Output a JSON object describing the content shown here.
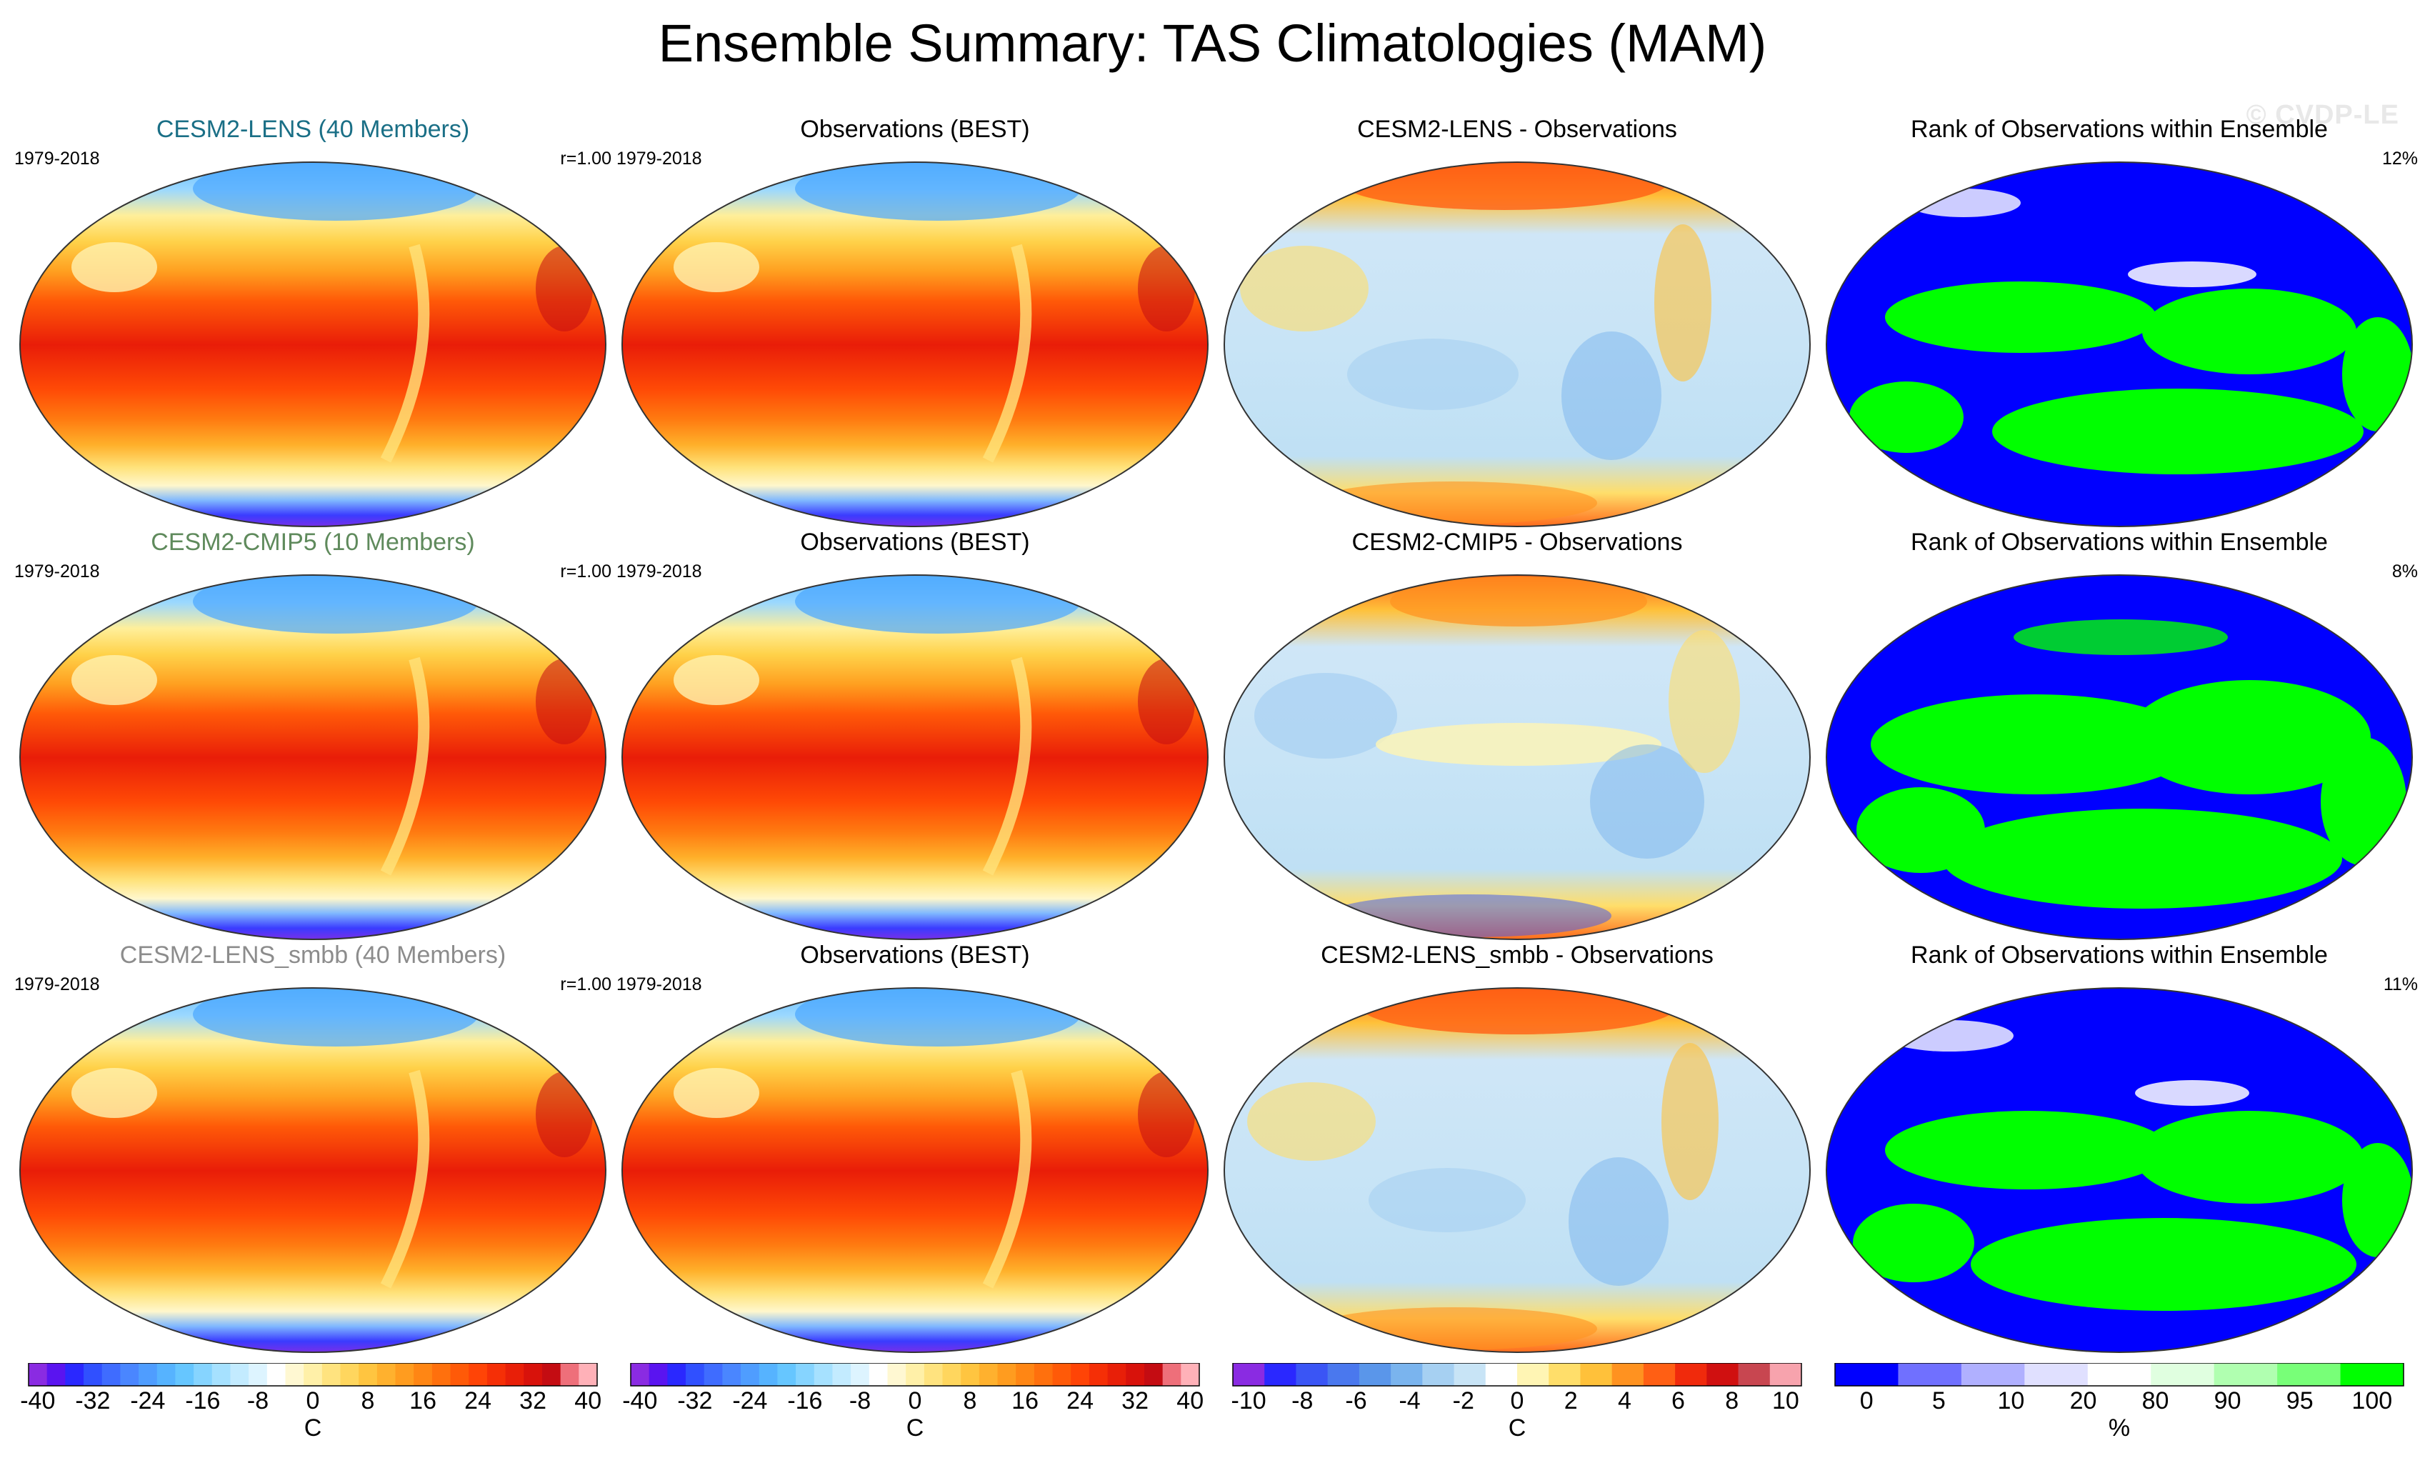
{
  "title": "Ensemble Summary: TAS Climatologies (MAM)",
  "watermark": "© CVDP-LE",
  "rows": [
    {
      "ensemble": {
        "title": "CESM2-LENS (40 Members)",
        "period": "1979-2018",
        "corr": "r=1.00"
      },
      "obs": {
        "title": "Observations (BEST)",
        "period": "1979-2018"
      },
      "diff": {
        "title": "CESM2-LENS - Observations"
      },
      "rank": {
        "title": "Rank of Observations within Ensemble",
        "pct": "12%"
      }
    },
    {
      "ensemble": {
        "title": "CESM2-CMIP5 (10 Members)",
        "period": "1979-2018",
        "corr": "r=1.00"
      },
      "obs": {
        "title": "Observations (BEST)",
        "period": "1979-2018"
      },
      "diff": {
        "title": "CESM2-CMIP5 - Observations"
      },
      "rank": {
        "title": "Rank of Observations within Ensemble",
        "pct": "8%"
      }
    },
    {
      "ensemble": {
        "title": "CESM2-LENS_smbb (40 Members)",
        "period": "1979-2018",
        "corr": "r=1.00"
      },
      "obs": {
        "title": "Observations (BEST)",
        "period": "1979-2018"
      },
      "diff": {
        "title": "CESM2-LENS_smbb - Observations"
      },
      "rank": {
        "title": "Rank of Observations within Ensemble",
        "pct": "11%"
      }
    }
  ],
  "colorbars": {
    "clim": {
      "unit": "C",
      "labels": [
        "-40",
        "-32",
        "-24",
        "-16",
        "-8",
        "0",
        "8",
        "16",
        "24",
        "32",
        "40"
      ],
      "colors": [
        "#8a2be2",
        "#5a14f0",
        "#2a28ff",
        "#3050ff",
        "#3f6cff",
        "#4a86ff",
        "#4f9dff",
        "#56b3ff",
        "#66c6ff",
        "#86d4ff",
        "#a6e1ff",
        "#c3ebff",
        "#ddf4ff",
        "#ffffff",
        "#fff8d2",
        "#fff0a8",
        "#ffe37f",
        "#ffd65e",
        "#ffc540",
        "#ffb12e",
        "#ff9c1f",
        "#ff8614",
        "#ff700d",
        "#ff5a08",
        "#ff4406",
        "#f52f06",
        "#e81f08",
        "#d8120b",
        "#c40c12",
        "#ee6f7a",
        "#ffb1b8"
      ]
    },
    "diff": {
      "unit": "C",
      "labels": [
        "-10",
        "-8",
        "-6",
        "-4",
        "-2",
        "0",
        "2",
        "4",
        "6",
        "8",
        "10"
      ],
      "colors": [
        "#8a2be2",
        "#2a28ff",
        "#3a55f5",
        "#4a78ee",
        "#5a96ea",
        "#7ab4ee",
        "#a6d0f2",
        "#c8e4f6",
        "#ffffff",
        "#fff5b4",
        "#ffde6a",
        "#ffc13a",
        "#ff9220",
        "#ff5f14",
        "#f02a0c",
        "#d01010",
        "#c84650",
        "#f7a3ad"
      ]
    },
    "rank": {
      "unit": "%",
      "labels": [
        "0",
        "5",
        "10",
        "20",
        "80",
        "90",
        "95",
        "100"
      ],
      "colors": [
        "#0000ff",
        "#7070ff",
        "#b0b0ff",
        "#e0e0ff",
        "#ffffff",
        "#e0ffe0",
        "#b0ffb0",
        "#78ff78",
        "#00ff00"
      ]
    }
  }
}
